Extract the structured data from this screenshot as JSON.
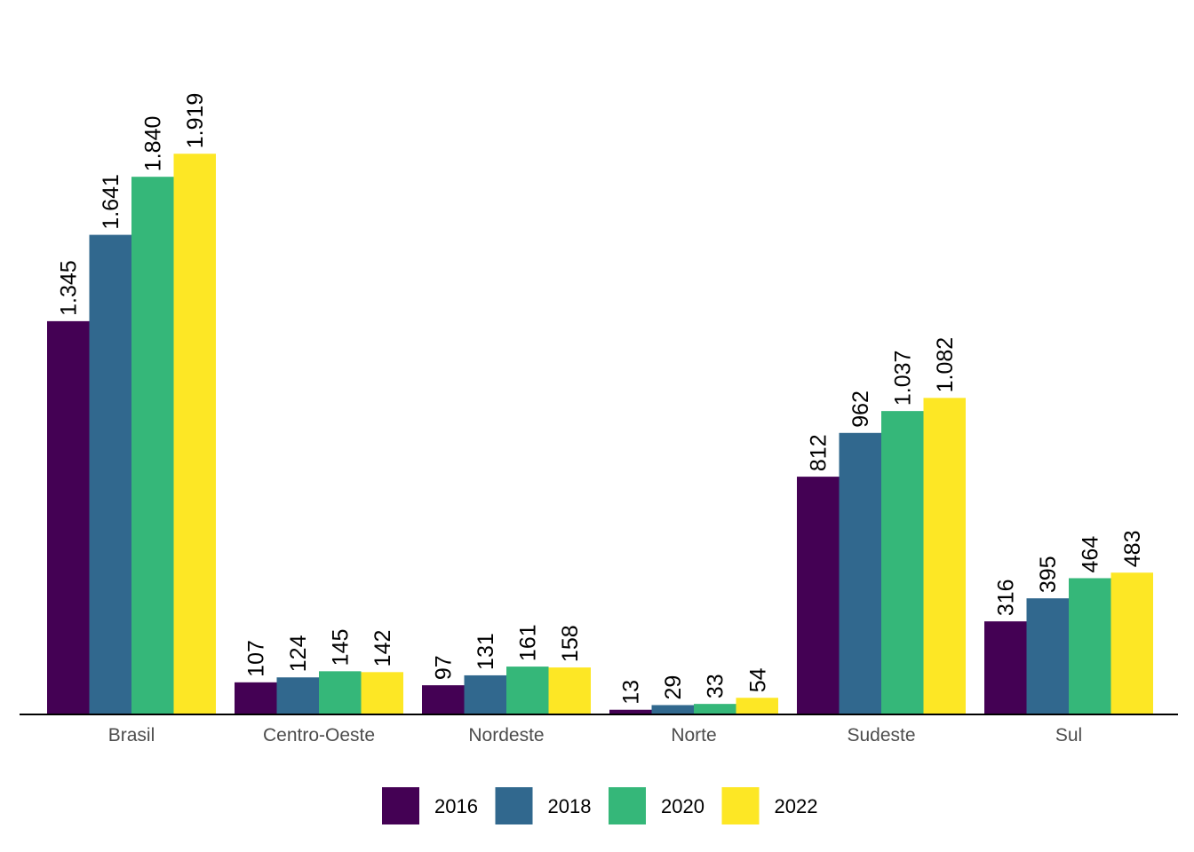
{
  "chart_data": {
    "type": "bar",
    "categories": [
      "Brasil",
      "Centro-Oeste",
      "Nordeste",
      "Norte",
      "Sudeste",
      "Sul"
    ],
    "series": [
      {
        "name": "2016",
        "color": "#440154",
        "values": [
          1345,
          107,
          97,
          13,
          812,
          316
        ],
        "labels": [
          "1.345",
          "107",
          "97",
          "13",
          "812",
          "316"
        ]
      },
      {
        "name": "2018",
        "color": "#31688E",
        "values": [
          1641,
          124,
          131,
          29,
          962,
          395
        ],
        "labels": [
          "1.641",
          "124",
          "131",
          "29",
          "962",
          "395"
        ]
      },
      {
        "name": "2020",
        "color": "#35B779",
        "values": [
          1840,
          145,
          161,
          33,
          1037,
          464
        ],
        "labels": [
          "1.840",
          "145",
          "161",
          "33",
          "1.037",
          "464"
        ]
      },
      {
        "name": "2022",
        "color": "#FDE725",
        "values": [
          1919,
          142,
          158,
          54,
          1082,
          483
        ],
        "labels": [
          "1.919",
          "142",
          "158",
          "54",
          "1.082",
          "483"
        ]
      }
    ],
    "title": "",
    "xlabel": "",
    "ylabel": "",
    "ylim": [
      0,
      2300
    ],
    "grid": false,
    "y_axis_shown": false,
    "legend_position": "bottom"
  }
}
